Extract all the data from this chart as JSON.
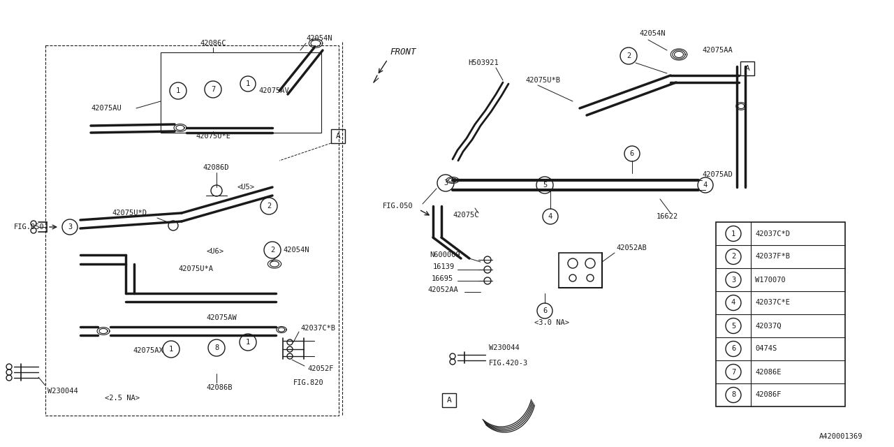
{
  "bg_color": "#ffffff",
  "line_color": "#1a1a1a",
  "legend_items": [
    {
      "num": "1",
      "code": "42037C*D"
    },
    {
      "num": "2",
      "code": "42037F*B"
    },
    {
      "num": "3",
      "code": "W170070"
    },
    {
      "num": "4",
      "code": "42037C*E"
    },
    {
      "num": "5",
      "code": "42037Q"
    },
    {
      "num": "6",
      "code": "0474S"
    },
    {
      "num": "7",
      "code": "42086E"
    },
    {
      "num": "8",
      "code": "42086F"
    }
  ],
  "diagram_id": "A420001369"
}
